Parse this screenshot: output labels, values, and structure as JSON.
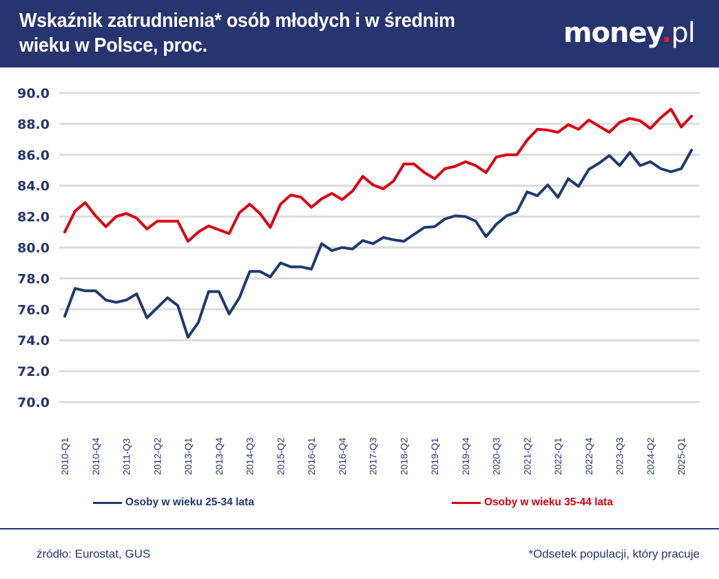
{
  "header": {
    "title": "Wskaźnik zatrudnienia* osób młodych i w średnim wieku w Polsce, proc.",
    "logo_main": "money",
    "logo_dot": ".",
    "logo_suffix": "pl",
    "background_color": "#263470"
  },
  "legend": {
    "series_1_label": "Osoby w wieku 25-34 lata",
    "series_2_label": "Osoby w wieku 35-44 lata"
  },
  "footer": {
    "source": "źródło: Eurostat, GUS",
    "note": "*Odsetek populacji, który pracuje"
  },
  "chart_data": {
    "type": "line",
    "title": "Wskaźnik zatrudnienia* osób młodych i w średnim wieku w Polsce, proc.",
    "xlabel": "",
    "ylabel": "",
    "ylim": [
      70,
      90
    ],
    "yticks": [
      "70.0",
      "72.0",
      "74.0",
      "76.0",
      "78.0",
      "80.0",
      "82.0",
      "84.0",
      "86.0",
      "88.0",
      "90.0"
    ],
    "ytick_values": [
      70,
      72,
      74,
      76,
      78,
      80,
      82,
      84,
      86,
      88,
      90
    ],
    "grid": true,
    "legend_position": "bottom",
    "x": [
      "2010-Q1",
      "2010-Q2",
      "2010-Q3",
      "2010-Q4",
      "2011-Q1",
      "2011-Q2",
      "2011-Q3",
      "2011-Q4",
      "2012-Q1",
      "2012-Q2",
      "2012-Q3",
      "2012-Q4",
      "2013-Q1",
      "2013-Q2",
      "2013-Q3",
      "2013-Q4",
      "2014-Q1",
      "2014-Q2",
      "2014-Q3",
      "2014-Q4",
      "2015-Q1",
      "2015-Q2",
      "2015-Q3",
      "2015-Q4",
      "2016-Q1",
      "2016-Q2",
      "2016-Q3",
      "2016-Q4",
      "2017-Q1",
      "2017-Q2",
      "2017-Q3",
      "2017-Q4",
      "2018-Q1",
      "2018-Q2",
      "2018-Q3",
      "2018-Q4",
      "2019-Q1",
      "2019-Q2",
      "2019-Q3",
      "2019-Q4",
      "2020-Q1",
      "2020-Q2",
      "2020-Q3",
      "2020-Q4",
      "2021-Q1",
      "2021-Q2",
      "2021-Q3",
      "2021-Q4",
      "2022-Q1",
      "2022-Q2",
      "2022-Q3",
      "2022-Q4",
      "2023-Q1",
      "2023-Q2",
      "2023-Q3",
      "2023-Q4",
      "2024-Q1",
      "2024-Q2",
      "2024-Q3",
      "2024-Q4",
      "2025-Q1",
      "2025-Q2"
    ],
    "xtick_labels": [
      "2010-Q1",
      "2010-Q4",
      "2011-Q3",
      "2012-Q2",
      "2013-Q1",
      "2013-Q4",
      "2014-Q3",
      "2015-Q2",
      "2016-Q1",
      "2016-Q4",
      "2017-Q3",
      "2018-Q2",
      "2019-Q1",
      "2019-Q4",
      "2020-Q3",
      "2021-Q2",
      "2022-Q1",
      "2022-Q4",
      "2023-Q3",
      "2024-Q2",
      "2025-Q1"
    ],
    "series": [
      {
        "name": "Osoby w wieku 25-34 lata",
        "color": "#1f3a6e",
        "values": [
          75.55,
          77.35,
          77.2,
          77.2,
          76.6,
          76.45,
          76.6,
          77.0,
          75.45,
          76.1,
          76.75,
          76.25,
          74.2,
          75.15,
          77.15,
          77.15,
          75.7,
          76.75,
          78.45,
          78.45,
          78.1,
          79.0,
          78.75,
          78.75,
          78.6,
          80.25,
          79.8,
          80.0,
          79.9,
          80.45,
          80.25,
          80.65,
          80.5,
          80.4,
          80.85,
          81.3,
          81.35,
          81.85,
          82.05,
          82.0,
          81.7,
          80.7,
          81.5,
          82.05,
          82.3,
          83.6,
          83.35,
          84.05,
          83.25,
          84.45,
          83.95,
          85.05,
          85.45,
          85.95,
          85.3,
          86.15,
          85.3,
          85.55,
          85.1,
          84.9,
          85.1,
          86.3
        ]
      },
      {
        "name": "Osoby w wieku 35-44 lata",
        "color": "#d90012",
        "values": [
          81.0,
          82.35,
          82.9,
          82.05,
          81.35,
          82.0,
          82.2,
          81.9,
          81.2,
          81.7,
          81.7,
          81.7,
          80.4,
          81.0,
          81.4,
          81.15,
          80.9,
          82.25,
          82.8,
          82.2,
          81.3,
          82.8,
          83.4,
          83.25,
          82.6,
          83.15,
          83.5,
          83.1,
          83.65,
          84.6,
          84.05,
          83.8,
          84.3,
          85.4,
          85.4,
          84.85,
          84.45,
          85.1,
          85.25,
          85.55,
          85.3,
          84.85,
          85.85,
          86.0,
          86.0,
          86.95,
          87.65,
          87.6,
          87.45,
          87.95,
          87.65,
          88.25,
          87.85,
          87.45,
          88.1,
          88.35,
          88.2,
          87.7,
          88.4,
          88.95,
          87.8,
          88.5
        ]
      }
    ]
  }
}
